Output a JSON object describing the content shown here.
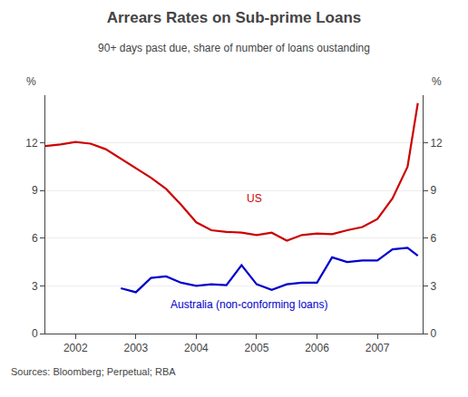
{
  "chart_data": {
    "type": "line",
    "title": "Arrears Rates on Sub-prime Loans",
    "subtitle": "90+ days past due, share of number of loans oustanding",
    "source": "Sources: Bloomberg; Perpetual; RBA",
    "ylabel": "%",
    "y2label": "%",
    "xlim": [
      2001.5,
      2007.75
    ],
    "xticks": [
      2002,
      2003,
      2004,
      2005,
      2006,
      2007
    ],
    "ylim": [
      0,
      15
    ],
    "yticks": [
      0,
      3,
      6,
      9,
      12
    ],
    "y2lim": [
      0,
      15
    ],
    "y2ticks": [
      0,
      3,
      6,
      9,
      12
    ],
    "grid": true,
    "series": [
      {
        "color": "#cc0000",
        "x": [
          2001.5,
          2001.75,
          2002.0,
          2002.25,
          2002.5,
          2002.75,
          2003.0,
          2003.25,
          2003.5,
          2003.75,
          2004.0,
          2004.25,
          2004.5,
          2004.75,
          2005.0,
          2005.25,
          2005.5,
          2005.75,
          2006.0,
          2006.25,
          2006.5,
          2006.75,
          2007.0,
          2007.25,
          2007.5,
          2007.67
        ],
        "values": [
          11.8,
          11.9,
          12.05,
          11.95,
          11.6,
          11.0,
          10.4,
          9.8,
          9.1,
          8.1,
          7.0,
          6.5,
          6.4,
          6.35,
          6.2,
          6.35,
          5.85,
          6.2,
          6.3,
          6.25,
          6.5,
          6.7,
          7.2,
          8.5,
          10.5,
          14.5
        ]
      },
      {
        "color": "#0000cc",
        "x": [
          2002.75,
          2003.0,
          2003.25,
          2003.5,
          2003.75,
          2004.0,
          2004.25,
          2004.5,
          2004.75,
          2005.0,
          2005.25,
          2005.5,
          2005.75,
          2006.0,
          2006.25,
          2006.5,
          2006.75,
          2007.0,
          2007.25,
          2007.5,
          2007.67
        ],
        "values": [
          2.85,
          2.6,
          3.5,
          3.6,
          3.2,
          3.0,
          3.1,
          3.05,
          4.3,
          3.1,
          2.75,
          3.1,
          3.2,
          3.2,
          4.8,
          4.5,
          4.6,
          4.6,
          5.3,
          5.4,
          4.9
        ]
      }
    ],
    "annotations": [
      {
        "text": "US",
        "x": 2004.8,
        "y": 8.0,
        "color": "#cc0000"
      },
      {
        "text": "Australia (non-conforming loans)",
        "x": 2003.55,
        "y": 1.3,
        "color": "#0000cc"
      }
    ]
  }
}
